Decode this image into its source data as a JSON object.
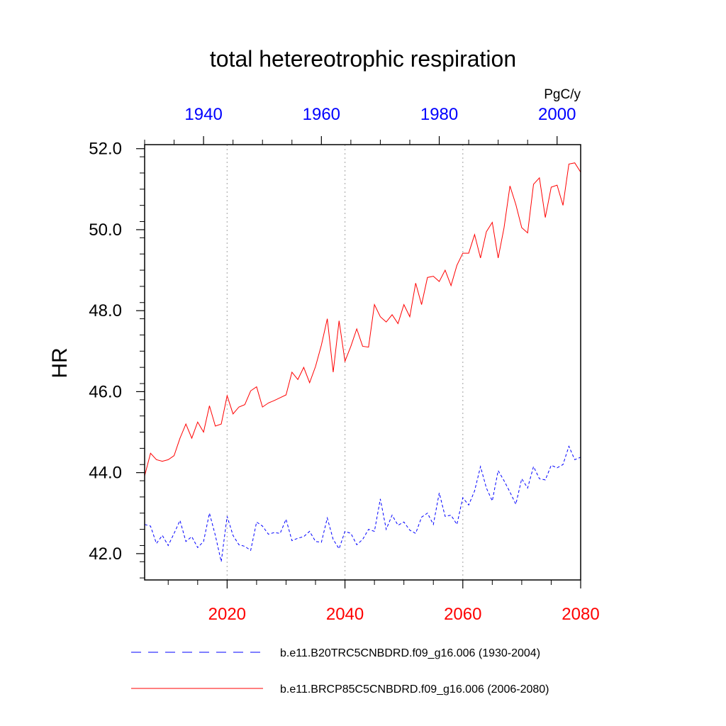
{
  "chart_data": {
    "type": "line",
    "title": "total hetereotrophic respiration",
    "units": "PgC/y",
    "ylabel": "HR",
    "ylim": [
      41.35,
      52.1
    ],
    "y_ticks": [
      "42.0",
      "44.0",
      "46.0",
      "48.0",
      "50.0",
      "52.0"
    ],
    "y_tick_values": [
      42,
      44,
      46,
      48,
      50,
      52
    ],
    "bottom_axis": {
      "range": [
        2006,
        2080
      ],
      "ticks": [
        "2020",
        "2040",
        "2060",
        "2080"
      ],
      "tick_values": [
        2020,
        2040,
        2060,
        2080
      ],
      "color": "#ff0000"
    },
    "top_axis": {
      "range": [
        1930,
        2004
      ],
      "ticks": [
        "1940",
        "1960",
        "1980",
        "2000"
      ],
      "tick_values": [
        1940,
        1960,
        1980,
        2000
      ],
      "color": "#0000ff"
    },
    "grid_x_values": [
      2020,
      2040,
      2060
    ],
    "legend_position": "bottom",
    "series": [
      {
        "name": "b.e11.B20TRC5CNBDRD.f09_g16.006 (1930-2004)",
        "axis": "top",
        "color": "#0000ff",
        "style": "dashed",
        "x": [
          1930,
          1931,
          1932,
          1933,
          1934,
          1935,
          1936,
          1937,
          1938,
          1939,
          1940,
          1941,
          1942,
          1943,
          1944,
          1945,
          1946,
          1947,
          1948,
          1949,
          1950,
          1951,
          1952,
          1953,
          1954,
          1955,
          1956,
          1957,
          1958,
          1959,
          1960,
          1961,
          1962,
          1963,
          1964,
          1965,
          1966,
          1967,
          1968,
          1969,
          1970,
          1971,
          1972,
          1973,
          1974,
          1975,
          1976,
          1977,
          1978,
          1979,
          1980,
          1981,
          1982,
          1983,
          1984,
          1985,
          1986,
          1987,
          1988,
          1989,
          1990,
          1991,
          1992,
          1993,
          1994,
          1995,
          1996,
          1997,
          1998,
          1999,
          2000,
          2001,
          2002,
          2003,
          2004
        ],
        "y": [
          42.72,
          42.68,
          42.25,
          42.45,
          42.2,
          42.5,
          42.82,
          42.3,
          42.42,
          42.15,
          42.3,
          43.0,
          42.45,
          41.8,
          42.92,
          42.45,
          42.22,
          42.18,
          42.08,
          42.78,
          42.68,
          42.48,
          42.52,
          42.5,
          42.85,
          42.32,
          42.38,
          42.42,
          42.55,
          42.3,
          42.28,
          42.88,
          42.35,
          42.12,
          42.55,
          42.5,
          42.22,
          42.35,
          42.6,
          42.55,
          43.35,
          42.6,
          42.95,
          42.7,
          42.78,
          42.58,
          42.5,
          42.9,
          43.0,
          42.72,
          43.5,
          42.92,
          42.95,
          42.72,
          43.38,
          43.2,
          43.55,
          44.15,
          43.62,
          43.3,
          44.05,
          43.8,
          43.52,
          43.22,
          43.85,
          43.62,
          44.15,
          43.85,
          43.82,
          44.18,
          44.12,
          44.2,
          44.65,
          44.32,
          44.38
        ]
      },
      {
        "name": "b.e11.BRCP85C5CNBDRD.f09_g16.006 (2006-2080)",
        "axis": "bottom",
        "color": "#ff0000",
        "style": "solid",
        "x": [
          2006,
          2007,
          2008,
          2009,
          2010,
          2011,
          2012,
          2013,
          2014,
          2015,
          2016,
          2017,
          2018,
          2019,
          2020,
          2021,
          2022,
          2023,
          2024,
          2025,
          2026,
          2027,
          2028,
          2029,
          2030,
          2031,
          2032,
          2033,
          2034,
          2035,
          2036,
          2037,
          2038,
          2039,
          2040,
          2041,
          2042,
          2043,
          2044,
          2045,
          2046,
          2047,
          2048,
          2049,
          2050,
          2051,
          2052,
          2053,
          2054,
          2055,
          2056,
          2057,
          2058,
          2059,
          2060,
          2061,
          2062,
          2063,
          2064,
          2065,
          2066,
          2067,
          2068,
          2069,
          2070,
          2071,
          2072,
          2073,
          2074,
          2075,
          2076,
          2077,
          2078,
          2079,
          2080
        ],
        "y": [
          43.92,
          44.48,
          44.32,
          44.28,
          44.32,
          44.42,
          44.85,
          45.2,
          44.85,
          45.25,
          45.0,
          45.65,
          45.15,
          45.2,
          45.9,
          45.45,
          45.62,
          45.68,
          46.02,
          46.12,
          45.62,
          45.72,
          45.78,
          45.85,
          45.92,
          46.48,
          46.3,
          46.6,
          46.22,
          46.62,
          47.15,
          47.8,
          46.48,
          47.75,
          46.75,
          47.12,
          47.55,
          47.12,
          47.1,
          48.15,
          47.85,
          47.72,
          47.9,
          47.68,
          48.15,
          47.85,
          48.68,
          48.15,
          48.82,
          48.85,
          48.72,
          49.0,
          48.62,
          49.12,
          49.42,
          49.42,
          49.88,
          49.3,
          49.95,
          50.18,
          49.3,
          50.05,
          51.08,
          50.62,
          50.05,
          49.92,
          51.12,
          51.28,
          50.3,
          51.05,
          51.1,
          50.6,
          51.62,
          51.65,
          51.42
        ]
      }
    ]
  }
}
